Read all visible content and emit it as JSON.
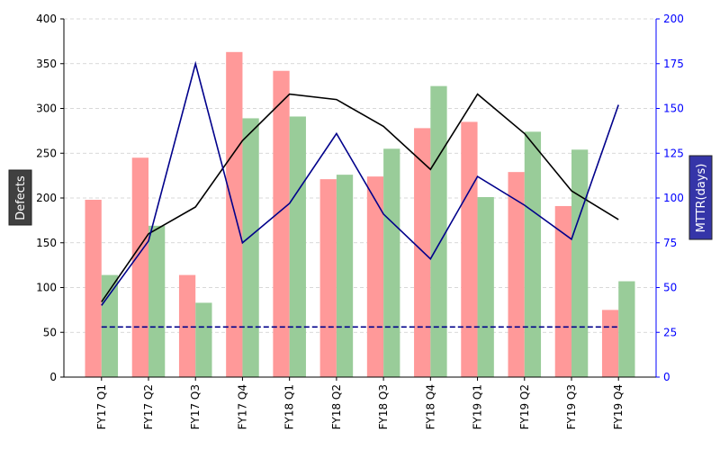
{
  "chart_data": {
    "type": "bar",
    "categories": [
      "FY17 Q1",
      "FY17 Q2",
      "FY17 Q3",
      "FY17 Q4",
      "FY18 Q1",
      "FY18 Q2",
      "FY18 Q3",
      "FY18 Q4",
      "FY19 Q1",
      "FY19 Q2",
      "FY19 Q3",
      "FY19 Q4"
    ],
    "series": [
      {
        "kind": "bar",
        "axis": "left",
        "color": "#ff9999",
        "values": [
          198,
          245,
          114,
          363,
          342,
          221,
          224,
          278,
          285,
          229,
          191,
          75
        ]
      },
      {
        "kind": "bar",
        "axis": "left",
        "color": "#99cc99",
        "values": [
          114,
          169,
          83,
          289,
          291,
          226,
          255,
          325,
          201,
          274,
          254,
          107
        ]
      },
      {
        "kind": "line",
        "axis": "right",
        "color": "#000000",
        "style": "solid",
        "values": [
          42,
          80,
          95,
          132,
          158,
          155,
          140,
          116,
          158,
          136,
          104,
          88
        ]
      },
      {
        "kind": "line",
        "axis": "right",
        "color": "#00008b",
        "style": "solid",
        "values": [
          40,
          76,
          175,
          75,
          97,
          136,
          91,
          66,
          112,
          96,
          77,
          152
        ]
      },
      {
        "kind": "line",
        "axis": "right",
        "color": "#00008b",
        "style": "dashed",
        "values": [
          28,
          28,
          28,
          28,
          28,
          28,
          28,
          28,
          28,
          28,
          28,
          28
        ]
      }
    ],
    "ylabel": "Defects",
    "y2label": "MTTR(days)",
    "ylim": [
      0,
      400
    ],
    "y2lim": [
      0,
      200
    ],
    "yticks": [
      "0",
      "50",
      "100",
      "150",
      "200",
      "250",
      "300",
      "350",
      "400"
    ],
    "y2ticks": [
      "0",
      "25",
      "50",
      "75",
      "100",
      "125",
      "150",
      "175",
      "200"
    ],
    "grid": true
  },
  "colors": {
    "left_label_box": "#404040",
    "right_label_box": "#3535a8",
    "right_axis": "#0000ff"
  }
}
